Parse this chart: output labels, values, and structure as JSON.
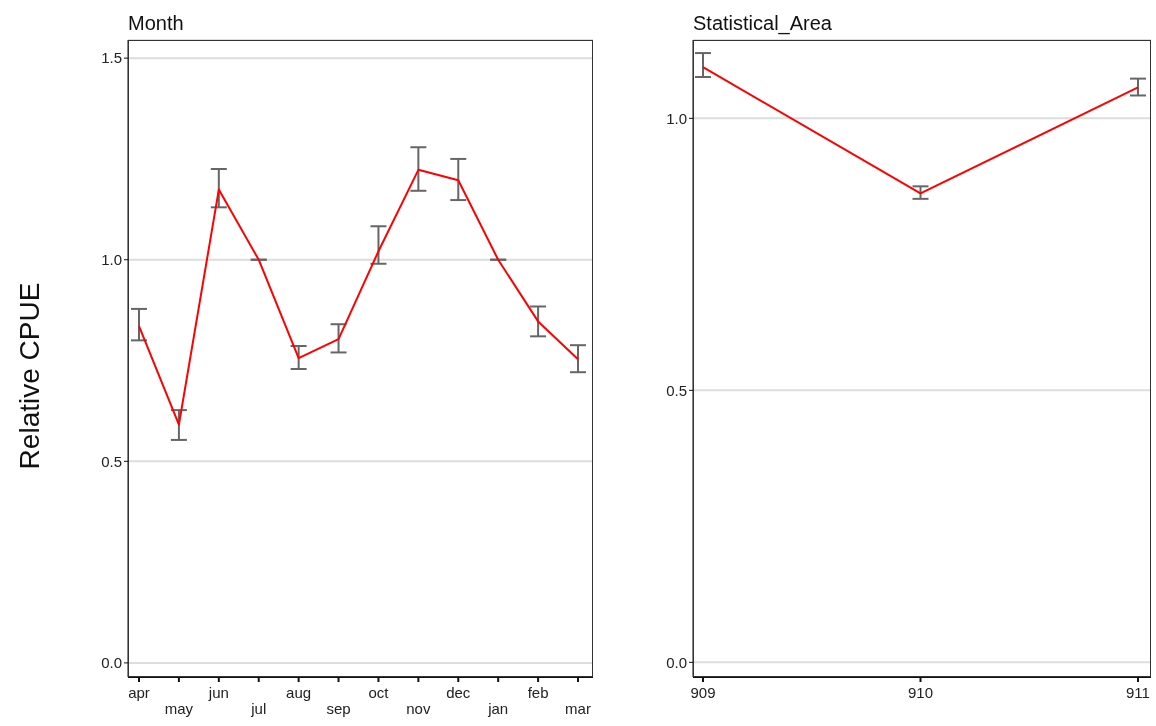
{
  "chart_data": [
    {
      "type": "line",
      "title": "Month",
      "ylabel": "Relative CPUE",
      "categories": [
        "apr",
        "may",
        "jun",
        "jul",
        "aug",
        "sep",
        "oct",
        "nov",
        "dec",
        "jan",
        "feb",
        "mar"
      ],
      "series": [
        {
          "color": "#ff0000",
          "values": [
            0.835,
            0.591,
            1.174,
            1.0,
            0.756,
            0.803,
            1.021,
            1.223,
            1.197,
            1.0,
            0.847,
            0.753
          ],
          "errors": [
            [
              0.8,
              0.878
            ],
            [
              0.553,
              0.627
            ],
            [
              1.13,
              1.225
            ],
            null,
            [
              0.729,
              0.786
            ],
            [
              0.77,
              0.84
            ],
            [
              0.99,
              1.083
            ],
            [
              1.171,
              1.279
            ],
            [
              1.148,
              1.25
            ],
            null,
            [
              0.81,
              0.884
            ],
            [
              0.721,
              0.788
            ]
          ]
        }
      ],
      "ylim": [
        -0.035,
        1.545
      ],
      "yticks": [
        {
          "value": 0,
          "label": "0.0"
        },
        {
          "value": 0.5,
          "label": "0.5"
        },
        {
          "value": 1,
          "label": "1.0"
        },
        {
          "value": 1.5,
          "label": "1.5"
        }
      ],
      "grid": "y",
      "legend": false,
      "marker": "none",
      "line_style": "solid"
    },
    {
      "type": "line",
      "title": "Statistical_Area",
      "categories": [
        "909",
        "910",
        "911"
      ],
      "series": [
        {
          "color": "#ff0000",
          "values": [
            1.094,
            0.862,
            1.057
          ],
          "errors": [
            [
              1.076,
              1.12
            ],
            [
              0.852,
              0.875
            ],
            [
              1.042,
              1.073
            ]
          ]
        }
      ],
      "ylim": [
        -0.027,
        1.144
      ],
      "yticks": [
        {
          "value": 0,
          "label": "0.0"
        },
        {
          "value": 0.5,
          "label": "0.5"
        },
        {
          "value": 1,
          "label": "1.0"
        }
      ],
      "grid": "y",
      "legend": false,
      "marker": "none",
      "line_style": "solid"
    }
  ]
}
